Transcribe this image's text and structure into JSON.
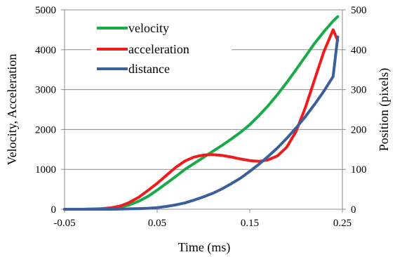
{
  "chart_data": {
    "type": "line",
    "title": "",
    "xlabel": "Time (ms)",
    "ylabel_left": "Velocity, Acceleration",
    "ylabel_right": "Position (pixels)",
    "xlim": [
      -0.05,
      0.25
    ],
    "ylim_left": [
      0,
      5000
    ],
    "ylim_right": [
      0,
      500
    ],
    "x_ticks": [
      -0.05,
      0.05,
      0.15,
      0.25
    ],
    "x_tick_labels": [
      "-0.05",
      "0.05",
      "0.15",
      "0.25"
    ],
    "y_left_ticks": [
      0,
      1000,
      2000,
      3000,
      4000,
      5000
    ],
    "y_left_tick_labels": [
      "0",
      "1000",
      "2000",
      "3000",
      "4000",
      "5000"
    ],
    "y_right_ticks": [
      0,
      100,
      200,
      300,
      400,
      500
    ],
    "y_right_tick_labels": [
      "0",
      "100",
      "200",
      "300",
      "400",
      "500"
    ],
    "grid": "horizontal",
    "legend_position": "top-left",
    "series": [
      {
        "name": "velocity",
        "color": "#1aaa4a",
        "axis": "left",
        "x": [
          -0.05,
          -0.04,
          -0.03,
          -0.02,
          -0.01,
          0.0,
          0.01,
          0.02,
          0.03,
          0.04,
          0.05,
          0.06,
          0.07,
          0.08,
          0.09,
          0.1,
          0.11,
          0.12,
          0.13,
          0.14,
          0.15,
          0.16,
          0.17,
          0.18,
          0.19,
          0.2,
          0.21,
          0.22,
          0.23,
          0.24,
          0.245
        ],
        "values": [
          0,
          0,
          0,
          5,
          10,
          25,
          55,
          110,
          200,
          320,
          480,
          650,
          820,
          1000,
          1150,
          1300,
          1450,
          1600,
          1760,
          1930,
          2120,
          2350,
          2600,
          2880,
          3180,
          3500,
          3830,
          4160,
          4450,
          4720,
          4830
        ]
      },
      {
        "name": "acceleration",
        "color": "#ee1c1c",
        "axis": "left",
        "x": [
          -0.05,
          -0.04,
          -0.03,
          -0.02,
          -0.01,
          0.0,
          0.01,
          0.02,
          0.03,
          0.04,
          0.05,
          0.06,
          0.07,
          0.08,
          0.09,
          0.1,
          0.11,
          0.12,
          0.13,
          0.14,
          0.15,
          0.16,
          0.17,
          0.18,
          0.19,
          0.2,
          0.21,
          0.22,
          0.23,
          0.24,
          0.245
        ],
        "values": [
          0,
          0,
          0,
          5,
          15,
          35,
          80,
          170,
          300,
          470,
          650,
          850,
          1050,
          1210,
          1310,
          1360,
          1370,
          1350,
          1310,
          1260,
          1220,
          1200,
          1240,
          1340,
          1560,
          1950,
          2550,
          3250,
          3950,
          4500,
          4230
        ]
      },
      {
        "name": "distance",
        "color": "#3a5f9a",
        "axis": "right",
        "x": [
          -0.05,
          -0.04,
          -0.03,
          -0.02,
          -0.01,
          0.0,
          0.01,
          0.02,
          0.03,
          0.04,
          0.05,
          0.06,
          0.07,
          0.08,
          0.09,
          0.1,
          0.11,
          0.12,
          0.13,
          0.14,
          0.15,
          0.16,
          0.17,
          0.18,
          0.19,
          0.2,
          0.21,
          0.22,
          0.23,
          0.24,
          0.245
        ],
        "values": [
          0,
          0,
          0,
          0,
          0,
          0,
          0.5,
          1,
          1.5,
          2.5,
          4,
          7,
          11,
          16,
          23,
          31,
          40,
          51,
          64,
          78,
          95,
          113,
          133,
          154,
          178,
          204,
          232,
          263,
          296,
          333,
          432
        ]
      }
    ]
  }
}
